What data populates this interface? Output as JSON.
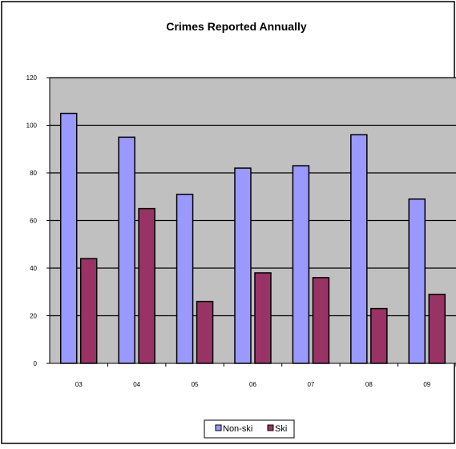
{
  "chart_data": {
    "type": "bar",
    "title": "Crimes Reported Annually",
    "categories": [
      "03",
      "04",
      "05",
      "06",
      "07",
      "08",
      "09"
    ],
    "series": [
      {
        "name": "Non-ski",
        "values": [
          105,
          95,
          71,
          82,
          83,
          96,
          69
        ],
        "color": "#9999ff"
      },
      {
        "name": "Ski",
        "values": [
          44,
          65,
          26,
          38,
          36,
          23,
          29
        ],
        "color": "#993366"
      }
    ],
    "y_ticks": [
      "0",
      "20",
      "40",
      "60",
      "80",
      "100",
      "120"
    ],
    "ylim": [
      0,
      120
    ],
    "grid": true,
    "plot_background": "#c0c0c0",
    "legend_position": "bottom"
  }
}
